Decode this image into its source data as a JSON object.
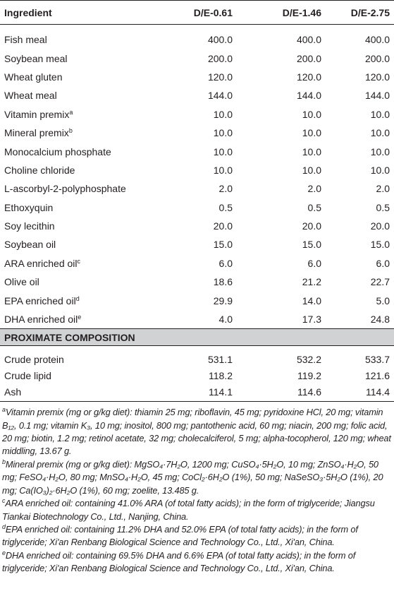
{
  "table": {
    "header": [
      "Ingredient",
      "D/E-0.61",
      "D/E-1.46",
      "D/E-2.75"
    ],
    "rows": [
      {
        "ingredient": "Fish meal",
        "values": [
          "400.0",
          "400.0",
          "400.0"
        ]
      },
      {
        "ingredient": "Soybean meal",
        "values": [
          "200.0",
          "200.0",
          "200.0"
        ]
      },
      {
        "ingredient": "Wheat gluten",
        "values": [
          "120.0",
          "120.0",
          "120.0"
        ]
      },
      {
        "ingredient": "Wheat meal",
        "values": [
          "144.0",
          "144.0",
          "144.0"
        ]
      },
      {
        "ingredient": "Vitamin premix",
        "note": "a",
        "values": [
          "10.0",
          "10.0",
          "10.0"
        ]
      },
      {
        "ingredient": "Mineral premix",
        "note": "b",
        "values": [
          "10.0",
          "10.0",
          "10.0"
        ]
      },
      {
        "ingredient": "Monocalcium phosphate",
        "values": [
          "10.0",
          "10.0",
          "10.0"
        ]
      },
      {
        "ingredient": "Choline chloride",
        "values": [
          "10.0",
          "10.0",
          "10.0"
        ]
      },
      {
        "ingredient": "L-ascorbyl-2-polyphosphate",
        "values": [
          "2.0",
          "2.0",
          "2.0"
        ]
      },
      {
        "ingredient": "Ethoxyquin",
        "values": [
          "0.5",
          "0.5",
          "0.5"
        ]
      },
      {
        "ingredient": "Soy lecithin",
        "values": [
          "20.0",
          "20.0",
          "20.0"
        ]
      },
      {
        "ingredient": "Soybean oil",
        "values": [
          "15.0",
          "15.0",
          "15.0"
        ]
      },
      {
        "ingredient": "ARA enriched oil",
        "note": "c",
        "values": [
          "6.0",
          "6.0",
          "6.0"
        ]
      },
      {
        "ingredient": "Olive oil",
        "values": [
          "18.6",
          "21.2",
          "22.7"
        ]
      },
      {
        "ingredient": "EPA enriched oil",
        "note": "d",
        "values": [
          "29.9",
          "14.0",
          "5.0"
        ]
      },
      {
        "ingredient": "DHA enriched oil",
        "note": "e",
        "values": [
          "4.0",
          "17.3",
          "24.8"
        ]
      }
    ],
    "section": "PROXIMATE COMPOSITION",
    "proximate_rows": [
      {
        "ingredient": "Crude protein",
        "values": [
          "531.1",
          "532.2",
          "533.7"
        ]
      },
      {
        "ingredient": "Crude lipid",
        "values": [
          "118.2",
          "119.2",
          "121.6"
        ]
      },
      {
        "ingredient": "Ash",
        "values": [
          "114.1",
          "114.6",
          "114.4"
        ]
      }
    ]
  },
  "footnotes": [
    {
      "mark": "a",
      "text": "Vitamin premix (mg or g/kg diet): thiamin 25 mg; riboflavin, 45 mg; pyridoxine HCl, 20 mg; vitamin B₁₂, 0.1 mg; vitamin K₃, 10 mg; inositol, 800 mg; pantothenic acid, 60 mg; niacin, 200 mg; folic acid, 20 mg; biotin, 1.2 mg; retinol acetate, 32 mg; cholecalciferol, 5 mg; alpha-tocopherol, 120 mg; wheat middling, 13.67 g."
    },
    {
      "mark": "b",
      "text": "Mineral premix (mg or g/kg diet): MgSO₄·7H₂O, 1200 mg; CuSO₄·5H₂O, 10 mg; ZnSO₄·H₂O, 50 mg; FeSO₄·H₂O, 80 mg; MnSO₄·H₂O, 45 mg; CoCl₂·6H₂O (1%), 50 mg; NaSeSO₃·5H₂O (1%), 20 mg; Ca(IO₃)₂·6H₂O (1%), 60 mg; zoelite, 13.485 g."
    },
    {
      "mark": "c",
      "text": "ARA enriched oil: containing 41.0% ARA (of total fatty acids); in the form of triglyceride; Jiangsu Tiankai Biotechnology Co., Ltd., Nanjing, China."
    },
    {
      "mark": "d",
      "text": "EPA enriched oil: containing 11.2% DHA and 52.0% EPA (of total fatty acids); in the form of triglyceride; Xi'an Renbang Biological Science and Technology Co., Ltd., Xi'an, China."
    },
    {
      "mark": "e",
      "text": "DHA enriched oil: containing 69.5% DHA and 6.6% EPA (of total fatty acids); in the form of triglyceride; Xi'an Renbang Biological Science and Technology Co., Ltd., Xi'an, China."
    }
  ]
}
